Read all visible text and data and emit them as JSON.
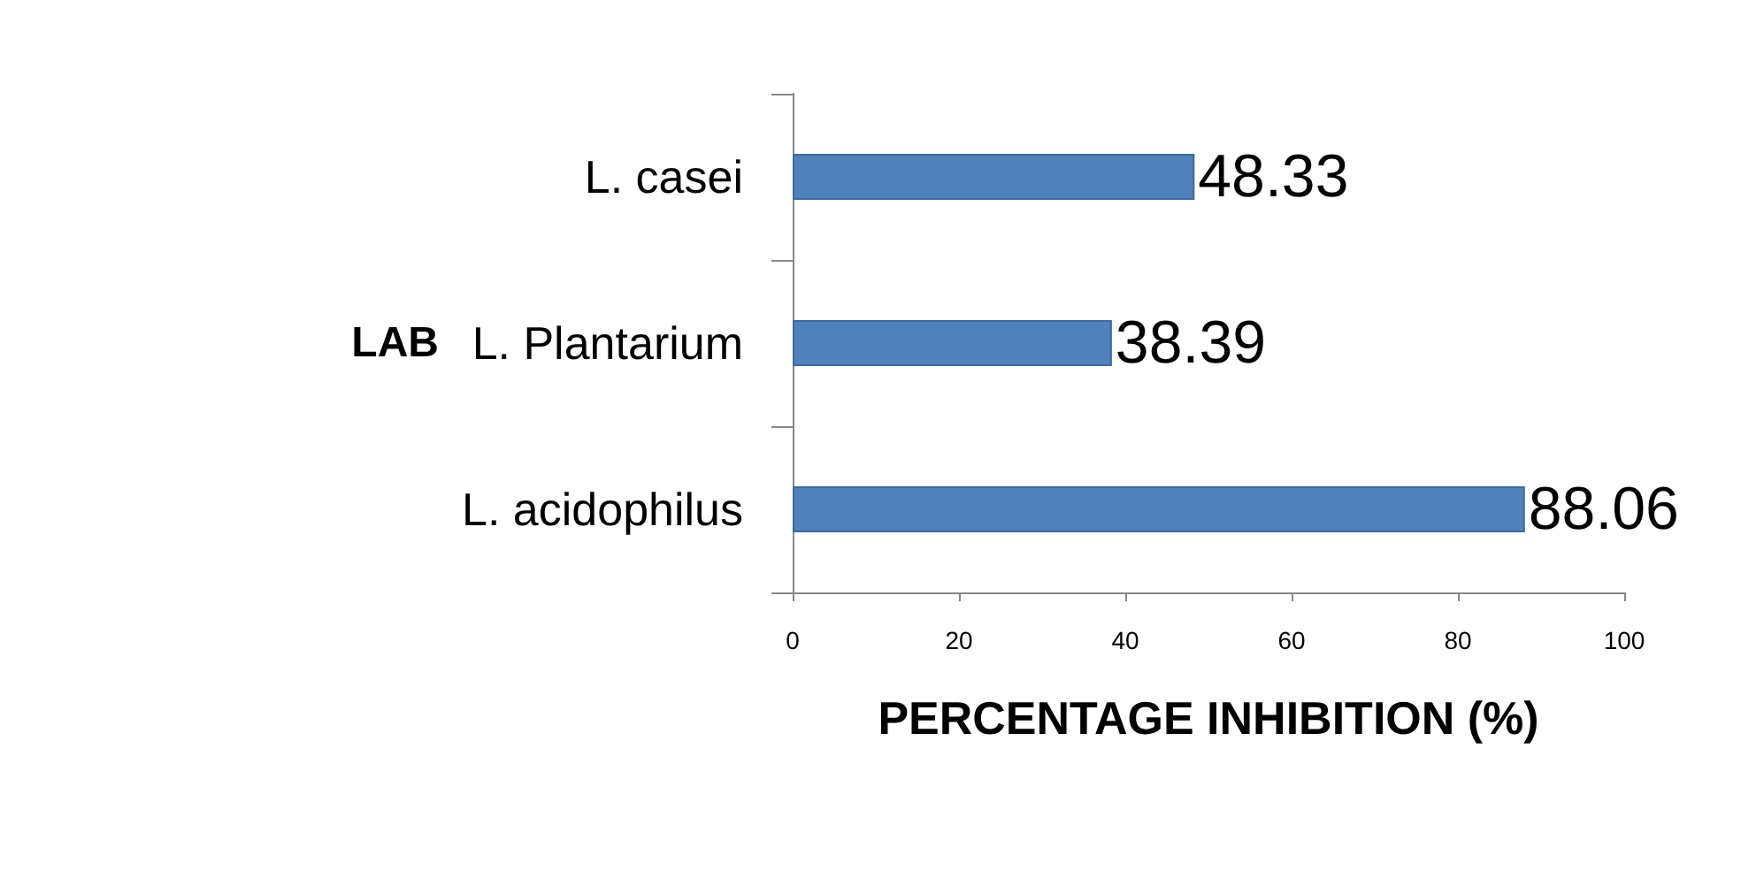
{
  "chart_data": {
    "type": "bar",
    "orientation": "horizontal",
    "categories": [
      "L. casei",
      "L. Plantarium",
      "L. acidophilus"
    ],
    "values": [
      48.33,
      38.39,
      88.06
    ],
    "color": "#4f81bd",
    "data_labels": true,
    "xlim": [
      0,
      100
    ],
    "xticks": [
      0,
      20,
      40,
      60,
      80,
      100
    ],
    "xlabel": "PERCENTAGE INHIBITION (%)",
    "ylabel": "LAB",
    "grid": false
  }
}
